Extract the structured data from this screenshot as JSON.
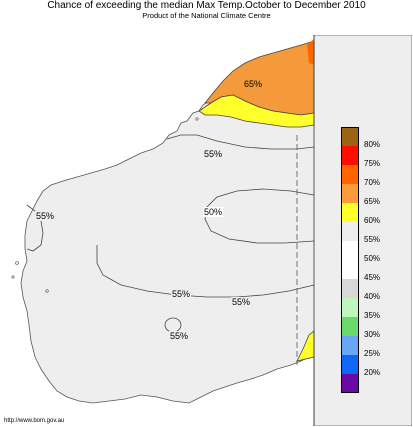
{
  "title": "Chance of exceeding the median Max Temp.October to December 2010",
  "subtitle": "Product of the National Climate Centre",
  "credit": "http://www.bom.gov.au",
  "colors": {
    "ocean": "#ffffff",
    "land": "#eeeeee",
    "coast": "#555555",
    "border": "#555555",
    "contour": "#444444",
    "orange": "#f59a3a",
    "yellow": "#ffff2a"
  },
  "legend": [
    {
      "label": "80%",
      "color": "#9c6314"
    },
    {
      "label": "75%",
      "color": "#ff0d00"
    },
    {
      "label": "70%",
      "color": "#ff6400"
    },
    {
      "label": "65%",
      "color": "#ff9a3a"
    },
    {
      "label": "60%",
      "color": "#ffff2a"
    },
    {
      "label": "55%",
      "color": "#eeeeee"
    },
    {
      "label": "50%",
      "color": "#ffffff"
    },
    {
      "label": "45%",
      "color": "#ffffff"
    },
    {
      "label": "40%",
      "color": "#d8d8d8"
    },
    {
      "label": "35%",
      "color": "#bff5bf"
    },
    {
      "label": "30%",
      "color": "#6ad86a"
    },
    {
      "label": "25%",
      "color": "#6ba6f5"
    },
    {
      "label": "20%",
      "color": "#0f67f5"
    },
    {
      "label": "",
      "color": "#6a0aa0"
    }
  ],
  "contour_labels": {
    "north": "65%",
    "kimberley_55": "55%",
    "west_55": "55%",
    "central_50": "50%",
    "south_55_a": "55%",
    "south_55_b": "55%",
    "southwest_55": "55%"
  }
}
